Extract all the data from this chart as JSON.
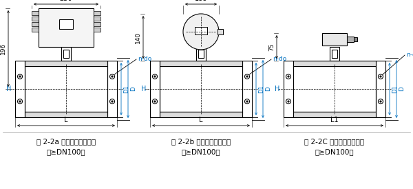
{
  "bg_color": "#ffffff",
  "line_color": "#000000",
  "captions": [
    "图 2-2a 一体型电磁流量计",
    "（≥DN100）",
    "图 2-2b 一体型电磁流量计",
    "（≥DN100）",
    "图 2-2C 分离型电磁流量计",
    "（≥DN100）"
  ],
  "fig_width": 6.0,
  "fig_height": 2.74,
  "dpi": 100
}
